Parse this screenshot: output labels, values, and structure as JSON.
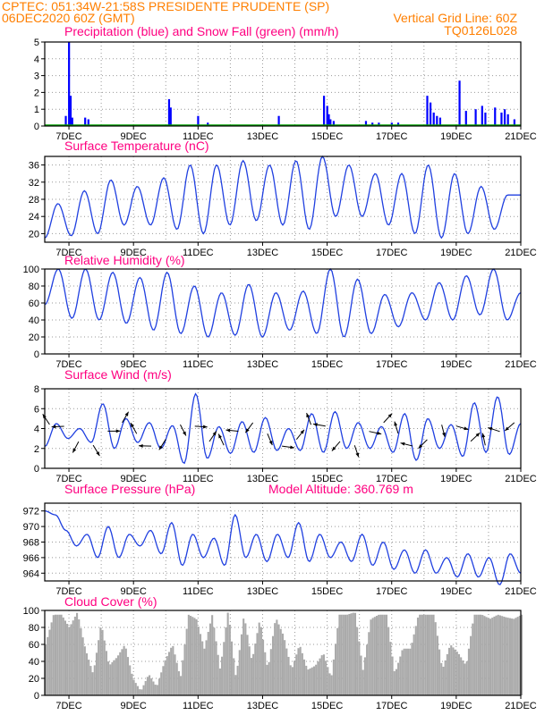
{
  "header": {
    "line1": "CPTEC:   051:34W-21:58S   PRESIDENTE PRUDENTE (SP)",
    "line2_left": "06DEC2020 60Z (GMT)",
    "line2_right": "Vertical Grid Line: 60Z",
    "code": "TQ0126L028"
  },
  "colors": {
    "header": "#ff7f00",
    "title": "#ff0080",
    "precip": "#0000ff",
    "snow": "#00a000",
    "line": "#2040e0",
    "cloud": "#aaaaaa",
    "arrow": "#000000",
    "grid": "#999999"
  },
  "chart_data": [
    {
      "type": "bar",
      "title": "Precipitation (blue) and Snow Fall (green) (mm/h)",
      "x_labels": [
        "7DEC",
        "9DEC",
        "11DEC",
        "13DEC",
        "15DEC",
        "17DEC",
        "19DEC",
        "21DEC"
      ],
      "ylim": [
        0,
        5
      ],
      "yticks": [
        0,
        1,
        2,
        3,
        4,
        5
      ],
      "x_days": [
        6.9,
        7.0,
        7.05,
        7.1,
        7.5,
        7.6,
        10.1,
        10.15,
        11.0,
        11.3,
        13.5,
        14.9,
        15.0,
        15.05,
        15.1,
        15.2,
        16.2,
        16.4,
        16.6,
        17.0,
        17.2,
        18.1,
        18.2,
        18.3,
        18.4,
        18.5,
        19.1,
        19.3,
        19.6,
        19.8,
        19.9,
        20.2,
        20.4,
        20.5,
        20.6,
        20.8
      ],
      "values": [
        0.6,
        5.0,
        1.8,
        0.5,
        0.5,
        0.4,
        1.6,
        1.1,
        0.6,
        0.2,
        0.6,
        1.8,
        1.2,
        0.7,
        0.4,
        0.3,
        0.3,
        0.2,
        0.2,
        0.2,
        0.2,
        1.8,
        1.4,
        0.8,
        0.6,
        0.5,
        2.7,
        0.9,
        1.0,
        1.2,
        0.8,
        1.1,
        0.8,
        1.0,
        0.7,
        0.4
      ],
      "snow": 0
    },
    {
      "type": "line",
      "title": "Surface Temperature (nC)",
      "x_labels": [
        "7DEC",
        "9DEC",
        "11DEC",
        "13DEC",
        "15DEC",
        "17DEC",
        "19DEC",
        "21DEC"
      ],
      "ylim": [
        18,
        38
      ],
      "yticks": [
        20,
        24,
        28,
        32,
        36
      ],
      "min": [
        19,
        19.5,
        20,
        22,
        22,
        21,
        20,
        22,
        23,
        22,
        21,
        24,
        24,
        22,
        20,
        19,
        20,
        21
      ],
      "max": [
        27,
        30,
        32.5,
        31,
        33,
        36,
        36,
        37,
        36,
        37,
        38,
        36,
        34,
        34,
        36,
        34,
        31,
        29,
        29
      ]
    },
    {
      "type": "line",
      "title": "Relative Humidity (%)",
      "x_labels": [
        "7DEC",
        "9DEC",
        "11DEC",
        "13DEC",
        "15DEC",
        "17DEC",
        "19DEC",
        "21DEC"
      ],
      "ylim": [
        0,
        100
      ],
      "yticks": [
        0,
        20,
        40,
        60,
        80,
        100
      ],
      "min": [
        58,
        42,
        40,
        36,
        28,
        24,
        20,
        22,
        20,
        28,
        24,
        20,
        24,
        32,
        40,
        40,
        46,
        40
      ],
      "max": [
        100,
        100,
        96,
        90,
        96,
        80,
        72,
        82,
        72,
        74,
        100,
        88,
        70,
        72,
        84,
        92,
        100,
        72
      ]
    },
    {
      "type": "line",
      "title": "Surface Wind (m/s)",
      "x_labels": [
        "7DEC",
        "9DEC",
        "11DEC",
        "13DEC",
        "15DEC",
        "17DEC",
        "19DEC",
        "21DEC"
      ],
      "ylim": [
        0,
        8
      ],
      "yticks": [
        0,
        2,
        4,
        6,
        8
      ],
      "min": [
        2.2,
        3,
        2.6,
        2,
        2.6,
        2,
        0.5,
        1,
        1.5,
        1.6,
        1.8,
        1.8,
        1.6,
        2,
        2,
        1.6,
        0.8,
        2,
        1.2,
        1.6,
        1.4
      ],
      "max": [
        4.5,
        4,
        6.5,
        5,
        4.6,
        4.3,
        7.5,
        4.2,
        4.7,
        5.1,
        4,
        5.5,
        5.7,
        4.6,
        4.2,
        5.5,
        5,
        4.4,
        6.6,
        7.2,
        4.5
      ]
    },
    {
      "type": "line",
      "title": "Surface Pressure (hPa)",
      "annotation": "Model Altitude: 360.769  m",
      "x_labels": [
        "7DEC",
        "9DEC",
        "11DEC",
        "13DEC",
        "15DEC",
        "17DEC",
        "19DEC",
        "21DEC"
      ],
      "ylim": [
        963,
        973
      ],
      "yticks": [
        964,
        966,
        968,
        970,
        972
      ],
      "values": [
        972,
        971.5,
        969.5,
        967.5,
        969,
        966,
        970,
        966,
        969,
        967.5,
        969.5,
        966.5,
        970.5,
        965,
        969,
        966,
        968.5,
        965,
        971.5,
        966,
        969,
        965.5,
        969,
        966,
        970.5,
        965.5,
        969,
        966,
        968,
        965.5,
        969,
        965,
        968,
        964.5,
        967,
        964,
        967,
        964,
        966,
        963.5,
        966.5,
        963.5,
        966,
        962.5,
        966.5,
        964
      ]
    },
    {
      "type": "area",
      "title": "Cloud Cover (%)",
      "x_labels": [
        "7DEC",
        "9DEC",
        "11DEC",
        "13DEC",
        "15DEC",
        "17DEC",
        "19DEC",
        "21DEC"
      ],
      "ylim": [
        0,
        100
      ],
      "yticks": [
        0,
        20,
        40,
        60,
        80,
        100
      ],
      "values": [
        60,
        95,
        95,
        80,
        98,
        55,
        25,
        85,
        35,
        45,
        60,
        20,
        5,
        25,
        10,
        40,
        60,
        20,
        95,
        90,
        55,
        95,
        30,
        100,
        20,
        95,
        40,
        90,
        30,
        92,
        70,
        30,
        60,
        30,
        35,
        50,
        20,
        95,
        95,
        98,
        30,
        90,
        95,
        95,
        25,
        55,
        55,
        95,
        95,
        95,
        30,
        60,
        50,
        35,
        95,
        95,
        90,
        95,
        92,
        90,
        95
      ]
    }
  ]
}
